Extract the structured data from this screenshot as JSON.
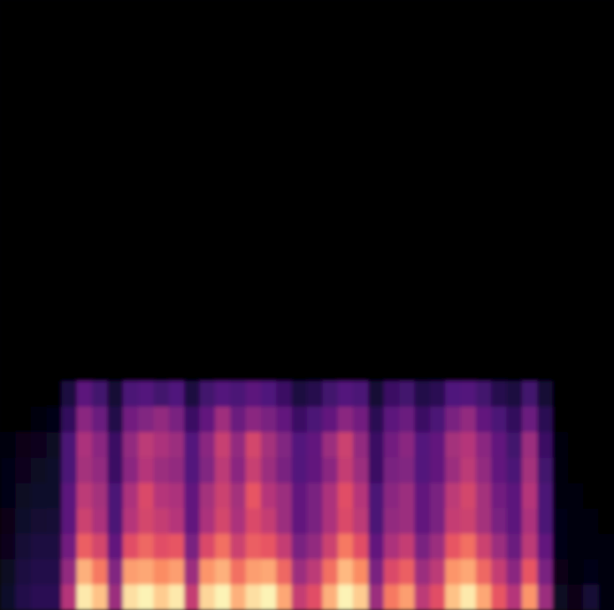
{
  "chart_data": {
    "type": "heatmap",
    "tick_labels": false,
    "cell_range": [
      0,
      100
    ],
    "cells": [
      [
        0,
        0,
        0,
        0,
        0,
        0,
        0,
        0,
        0,
        0,
        0,
        0,
        0,
        0,
        0,
        0,
        0,
        0,
        0,
        0,
        0,
        0,
        0,
        0,
        0,
        0,
        0,
        0,
        0,
        0,
        0,
        0,
        0,
        0,
        0,
        0,
        0,
        0,
        0,
        0
      ],
      [
        0,
        0,
        0,
        0,
        0,
        0,
        0,
        0,
        0,
        0,
        0,
        0,
        0,
        0,
        0,
        0,
        0,
        0,
        0,
        0,
        0,
        0,
        0,
        0,
        0,
        0,
        0,
        0,
        0,
        0,
        0,
        0,
        0,
        0,
        0,
        0,
        0,
        0,
        0,
        0
      ],
      [
        0,
        0,
        0,
        0,
        0,
        0,
        0,
        0,
        0,
        0,
        0,
        0,
        0,
        0,
        0,
        0,
        0,
        0,
        0,
        0,
        0,
        0,
        0,
        0,
        0,
        0,
        0,
        0,
        0,
        0,
        0,
        0,
        0,
        0,
        0,
        0,
        0,
        0,
        0,
        0
      ],
      [
        0,
        0,
        0,
        0,
        0,
        0,
        0,
        0,
        0,
        0,
        0,
        0,
        0,
        0,
        0,
        0,
        0,
        0,
        0,
        0,
        0,
        0,
        0,
        0,
        0,
        0,
        0,
        0,
        0,
        0,
        0,
        0,
        0,
        0,
        0,
        0,
        0,
        0,
        0,
        0
      ],
      [
        0,
        0,
        0,
        0,
        0,
        0,
        0,
        0,
        0,
        0,
        0,
        0,
        0,
        0,
        0,
        0,
        0,
        0,
        0,
        0,
        0,
        0,
        0,
        0,
        0,
        0,
        0,
        0,
        0,
        0,
        0,
        0,
        0,
        0,
        0,
        0,
        0,
        0,
        0,
        0
      ],
      [
        0,
        0,
        0,
        0,
        0,
        0,
        0,
        0,
        0,
        0,
        0,
        0,
        0,
        0,
        0,
        0,
        0,
        0,
        0,
        0,
        0,
        0,
        0,
        0,
        0,
        0,
        0,
        0,
        0,
        0,
        0,
        0,
        0,
        0,
        0,
        0,
        0,
        0,
        0,
        0
      ],
      [
        0,
        0,
        0,
        0,
        0,
        0,
        0,
        0,
        0,
        0,
        0,
        0,
        0,
        0,
        0,
        0,
        0,
        0,
        0,
        0,
        0,
        0,
        0,
        0,
        0,
        0,
        0,
        0,
        0,
        0,
        0,
        0,
        0,
        0,
        0,
        0,
        0,
        0,
        0,
        0
      ],
      [
        0,
        0,
        0,
        0,
        0,
        0,
        0,
        0,
        0,
        0,
        0,
        0,
        0,
        0,
        0,
        0,
        0,
        0,
        0,
        0,
        0,
        0,
        0,
        0,
        0,
        0,
        0,
        0,
        0,
        0,
        0,
        0,
        0,
        0,
        0,
        0,
        0,
        0,
        0,
        0
      ],
      [
        0,
        0,
        0,
        0,
        0,
        0,
        0,
        0,
        0,
        0,
        0,
        0,
        0,
        0,
        0,
        0,
        0,
        0,
        0,
        0,
        0,
        0,
        0,
        0,
        0,
        0,
        0,
        0,
        0,
        0,
        0,
        0,
        0,
        0,
        0,
        0,
        0,
        0,
        0,
        0
      ],
      [
        0,
        0,
        0,
        0,
        0,
        0,
        0,
        0,
        0,
        0,
        0,
        0,
        0,
        0,
        0,
        0,
        0,
        0,
        0,
        0,
        0,
        0,
        0,
        0,
        0,
        0,
        0,
        0,
        0,
        0,
        0,
        0,
        0,
        0,
        0,
        0,
        0,
        0,
        0,
        0
      ],
      [
        0,
        0,
        0,
        0,
        0,
        0,
        0,
        0,
        0,
        0,
        0,
        0,
        0,
        0,
        0,
        0,
        0,
        0,
        0,
        0,
        0,
        0,
        0,
        0,
        0,
        0,
        0,
        0,
        0,
        0,
        0,
        0,
        0,
        0,
        0,
        0,
        0,
        0,
        0,
        0
      ],
      [
        0,
        0,
        0,
        0,
        0,
        0,
        0,
        0,
        0,
        0,
        0,
        0,
        0,
        0,
        0,
        0,
        0,
        0,
        0,
        0,
        0,
        0,
        0,
        0,
        0,
        0,
        0,
        0,
        0,
        0,
        0,
        0,
        0,
        0,
        0,
        0,
        0,
        0,
        0,
        0
      ],
      [
        0,
        0,
        0,
        0,
        0,
        0,
        0,
        0,
        0,
        0,
        0,
        0,
        0,
        0,
        0,
        0,
        0,
        0,
        0,
        0,
        0,
        0,
        0,
        0,
        0,
        0,
        0,
        0,
        0,
        0,
        0,
        0,
        0,
        0,
        0,
        0,
        0,
        0,
        0,
        0
      ],
      [
        0,
        0,
        0,
        0,
        0,
        0,
        0,
        0,
        0,
        0,
        0,
        0,
        0,
        0,
        0,
        0,
        0,
        0,
        0,
        0,
        0,
        0,
        0,
        0,
        0,
        0,
        0,
        0,
        0,
        0,
        0,
        0,
        0,
        0,
        0,
        0,
        0,
        0,
        0,
        0
      ],
      [
        0,
        0,
        0,
        0,
        0,
        0,
        0,
        0,
        0,
        0,
        0,
        0,
        0,
        0,
        0,
        0,
        0,
        0,
        0,
        0,
        0,
        0,
        0,
        0,
        0,
        0,
        0,
        0,
        0,
        0,
        0,
        0,
        0,
        0,
        0,
        0,
        0,
        0,
        0,
        0
      ],
      [
        0,
        0,
        0,
        0,
        12,
        28,
        22,
        10,
        24,
        26,
        22,
        25,
        12,
        22,
        26,
        24,
        28,
        25,
        20,
        12,
        15,
        22,
        26,
        24,
        10,
        20,
        22,
        14,
        16,
        25,
        26,
        22,
        15,
        12,
        22,
        10,
        0,
        0,
        0,
        0
      ],
      [
        0,
        0,
        2,
        3,
        18,
        40,
        32,
        14,
        34,
        38,
        42,
        36,
        20,
        30,
        45,
        32,
        40,
        36,
        30,
        20,
        24,
        30,
        40,
        34,
        16,
        28,
        32,
        20,
        24,
        36,
        42,
        30,
        24,
        18,
        32,
        16,
        0,
        0,
        0,
        0
      ],
      [
        2,
        4,
        5,
        6,
        24,
        48,
        40,
        20,
        42,
        52,
        48,
        44,
        26,
        40,
        55,
        42,
        58,
        46,
        38,
        26,
        30,
        44,
        56,
        42,
        20,
        34,
        40,
        26,
        30,
        46,
        50,
        40,
        30,
        22,
        44,
        20,
        1,
        0,
        0,
        0
      ],
      [
        3,
        5,
        6,
        8,
        24,
        46,
        42,
        20,
        40,
        50,
        44,
        42,
        26,
        38,
        52,
        40,
        55,
        44,
        36,
        26,
        30,
        40,
        54,
        44,
        20,
        36,
        38,
        26,
        30,
        44,
        52,
        42,
        30,
        24,
        46,
        22,
        2,
        0,
        0,
        0
      ],
      [
        3,
        6,
        8,
        8,
        28,
        52,
        46,
        24,
        48,
        60,
        50,
        48,
        30,
        46,
        56,
        46,
        64,
        50,
        44,
        30,
        36,
        48,
        62,
        50,
        24,
        40,
        44,
        30,
        36,
        52,
        58,
        46,
        34,
        28,
        50,
        24,
        2,
        1,
        0,
        0
      ],
      [
        4,
        8,
        9,
        10,
        28,
        56,
        48,
        24,
        50,
        58,
        54,
        50,
        30,
        48,
        58,
        48,
        60,
        54,
        44,
        30,
        36,
        48,
        60,
        52,
        24,
        42,
        44,
        30,
        36,
        54,
        56,
        46,
        36,
        28,
        48,
        24,
        3,
        1,
        1,
        0
      ],
      [
        5,
        10,
        12,
        12,
        34,
        66,
        58,
        30,
        62,
        68,
        62,
        64,
        36,
        60,
        70,
        56,
        66,
        64,
        54,
        36,
        42,
        56,
        72,
        62,
        30,
        48,
        54,
        36,
        44,
        64,
        70,
        56,
        44,
        32,
        52,
        30,
        3,
        2,
        2,
        1
      ],
      [
        6,
        12,
        14,
        14,
        42,
        84,
        72,
        38,
        80,
        82,
        76,
        80,
        44,
        78,
        84,
        70,
        80,
        82,
        68,
        44,
        52,
        70,
        86,
        76,
        36,
        60,
        66,
        44,
        52,
        78,
        82,
        68,
        54,
        40,
        64,
        36,
        4,
        2,
        3,
        1
      ],
      [
        8,
        14,
        16,
        16,
        50,
        96,
        88,
        44,
        94,
        98,
        90,
        96,
        54,
        92,
        98,
        84,
        94,
        98,
        82,
        54,
        62,
        84,
        98,
        90,
        44,
        72,
        80,
        52,
        62,
        88,
        96,
        82,
        64,
        50,
        78,
        44,
        6,
        4,
        10,
        2
      ]
    ]
  }
}
